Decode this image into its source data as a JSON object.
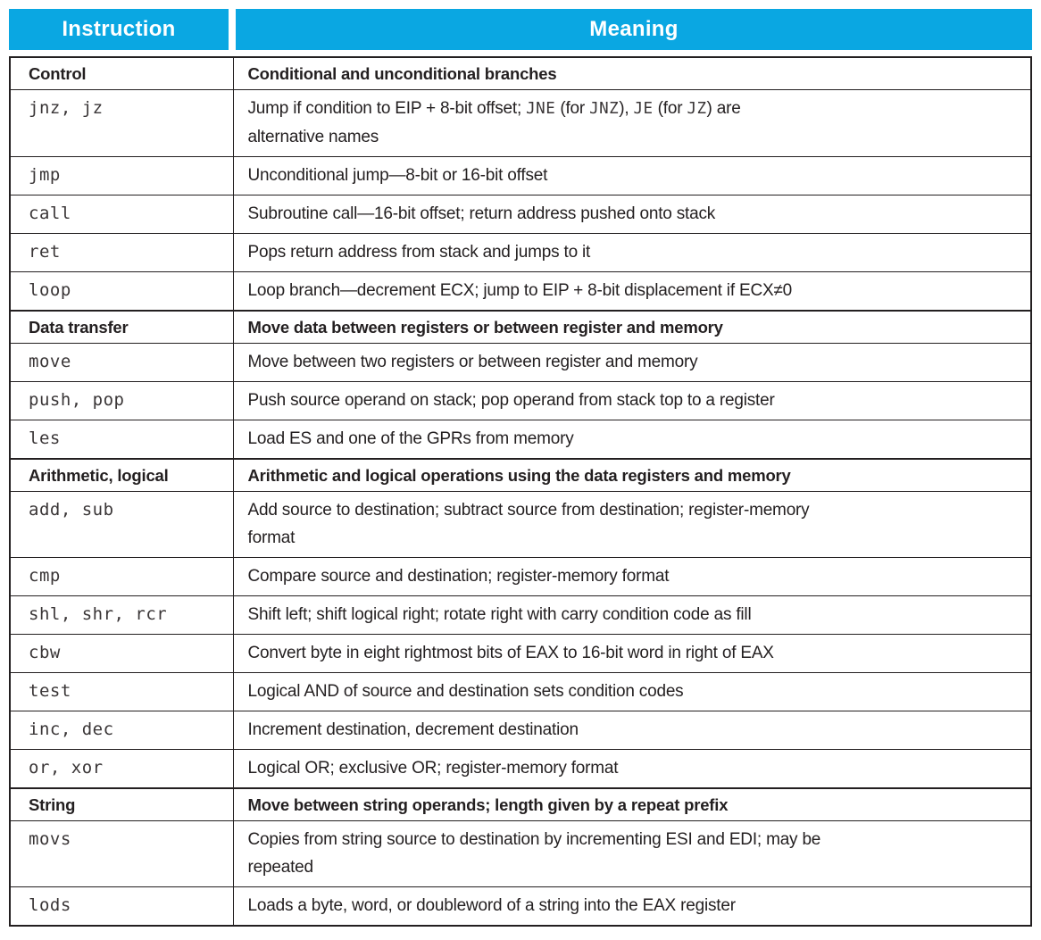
{
  "colors": {
    "header_bg": "#0aa7e2",
    "header_text": "#ffffff",
    "border": "#231f20",
    "text": "#231f20"
  },
  "table": {
    "header": {
      "instruction": "Instruction",
      "meaning": "Meaning"
    },
    "rows": [
      {
        "type": "section",
        "instruction": "Control",
        "parts": [
          {
            "t": "Conditional and unconditional branches"
          }
        ]
      },
      {
        "type": "ins",
        "instruction": "jnz, jz",
        "parts": [
          {
            "t": "Jump if condition to EIP + 8-bit offset; "
          },
          {
            "t": "JNE",
            "m": true
          },
          {
            "t": " (for "
          },
          {
            "t": "JNZ",
            "m": true
          },
          {
            "t": "), "
          },
          {
            "t": "JE",
            "m": true
          },
          {
            "t": " (for "
          },
          {
            "t": "JZ",
            "m": true
          },
          {
            "t": ") are"
          },
          {
            "br": true
          },
          {
            "t": "alternative names"
          }
        ]
      },
      {
        "type": "ins",
        "instruction": "jmp",
        "parts": [
          {
            "t": "Unconditional jump—8-bit or 16-bit offset"
          }
        ]
      },
      {
        "type": "ins",
        "instruction": "call",
        "parts": [
          {
            "t": "Subroutine call—16-bit offset; return address pushed onto stack"
          }
        ]
      },
      {
        "type": "ins",
        "instruction": "ret",
        "parts": [
          {
            "t": "Pops return address from stack and jumps to it"
          }
        ]
      },
      {
        "type": "ins",
        "instruction": "loop",
        "parts": [
          {
            "t": "Loop branch—decrement ECX; jump to EIP + 8-bit displacement if ECX≠0"
          }
        ]
      },
      {
        "type": "section",
        "instruction": "Data transfer",
        "parts": [
          {
            "t": "Move data between registers or between register and memory"
          }
        ]
      },
      {
        "type": "ins",
        "instruction": "move",
        "parts": [
          {
            "t": "Move between two registers or between register and memory"
          }
        ]
      },
      {
        "type": "ins",
        "instruction": "push, pop",
        "parts": [
          {
            "t": "Push source operand on stack; pop operand from stack top to a register"
          }
        ]
      },
      {
        "type": "ins",
        "instruction": "les",
        "parts": [
          {
            "t": "Load ES and one of the GPRs from memory"
          }
        ]
      },
      {
        "type": "section",
        "instruction": "Arithmetic, logical",
        "parts": [
          {
            "t": "Arithmetic and logical operations using the data registers and memory"
          }
        ]
      },
      {
        "type": "ins",
        "instruction": "add, sub",
        "parts": [
          {
            "t": "Add source to destination; subtract source from destination; register-memory"
          },
          {
            "br": true
          },
          {
            "t": "format"
          }
        ]
      },
      {
        "type": "ins",
        "instruction": "cmp",
        "parts": [
          {
            "t": "Compare source and destination; register-memory format"
          }
        ]
      },
      {
        "type": "ins",
        "instruction": "shl, shr, rcr",
        "parts": [
          {
            "t": "Shift left; shift logical right; rotate right with carry condition code as fill"
          }
        ]
      },
      {
        "type": "ins",
        "instruction": "cbw",
        "parts": [
          {
            "t": "Convert byte in eight rightmost bits of EAX to 16-bit word in right of EAX"
          }
        ]
      },
      {
        "type": "ins",
        "instruction": "test",
        "parts": [
          {
            "t": "Logical AND of source and destination sets condition codes"
          }
        ]
      },
      {
        "type": "ins",
        "instruction": "inc, dec",
        "parts": [
          {
            "t": "Increment destination, decrement destination"
          }
        ]
      },
      {
        "type": "ins",
        "instruction": "or, xor",
        "parts": [
          {
            "t": "Logical OR; exclusive OR; register-memory format"
          }
        ]
      },
      {
        "type": "section",
        "instruction": "String",
        "parts": [
          {
            "t": "Move between string operands; length given by a repeat prefix"
          }
        ]
      },
      {
        "type": "ins",
        "instruction": "movs",
        "parts": [
          {
            "t": "Copies from string source to destination by incrementing ESI and EDI; may be"
          },
          {
            "br": true
          },
          {
            "t": "repeated"
          }
        ]
      },
      {
        "type": "ins",
        "instruction": "lods",
        "parts": [
          {
            "t": "Loads a byte, word, or doubleword of a string into the EAX register"
          }
        ]
      }
    ]
  }
}
